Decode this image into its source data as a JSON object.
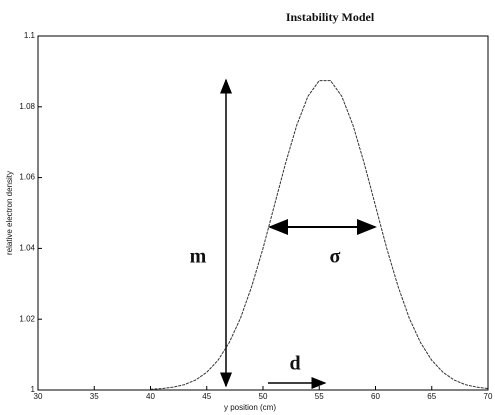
{
  "chart_data": {
    "type": "line",
    "title": "Instability Model",
    "x_label": "y position (cm)",
    "y_label": "relative electron density",
    "x": [
      40,
      41,
      42,
      43,
      44,
      45,
      46,
      47,
      48,
      49,
      50,
      51,
      52,
      53,
      54,
      55,
      56,
      57,
      58,
      59,
      60,
      61,
      62,
      63,
      64,
      65,
      66,
      67,
      68,
      69,
      70
    ],
    "series": [
      {
        "color": "#333333",
        "values": [
          1.0002,
          1.0004,
          1.0008,
          1.0015,
          1.0028,
          1.005,
          1.0084,
          1.0134,
          1.0203,
          1.0293,
          1.04,
          1.052,
          1.064,
          1.0748,
          1.083,
          1.0874,
          1.0874,
          1.083,
          1.0748,
          1.064,
          1.052,
          1.04,
          1.0293,
          1.0203,
          1.0134,
          1.0084,
          1.005,
          1.0028,
          1.0015,
          1.0008,
          1.0004
        ]
      }
    ],
    "xlim": [
      30,
      70
    ],
    "xticks": [
      30,
      35,
      40,
      45,
      50,
      55,
      60,
      65,
      70
    ],
    "ylim": [
      1,
      1.1
    ],
    "yticks": [
      1,
      1.02,
      1.04,
      1.06,
      1.08,
      1.1
    ],
    "annotations": [
      "m",
      "σ",
      "d"
    ]
  }
}
